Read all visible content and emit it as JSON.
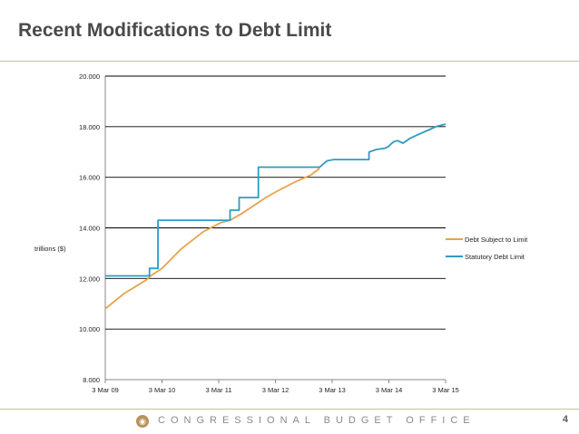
{
  "slide": {
    "title": "Recent Modifications to Debt Limit",
    "footer_org": "CONGRESSIONAL BUDGET OFFICE",
    "page_number": "4",
    "logo_icon": "cbo-seal-icon",
    "accent_color": "#c9c19a"
  },
  "chart_data": {
    "type": "line",
    "title": "",
    "xlabel": "",
    "ylabel": "trillions ($)",
    "xlim": [
      2009.17,
      2015.17
    ],
    "ylim": [
      8.0,
      20.0
    ],
    "grid": true,
    "legend_position": "right",
    "x_ticks": [
      {
        "label": "3 Mar 09",
        "value": 2009.17
      },
      {
        "label": "3 Mar 10",
        "value": 2010.17
      },
      {
        "label": "3 Mar 11",
        "value": 2011.17
      },
      {
        "label": "3 Mar 12",
        "value": 2012.17
      },
      {
        "label": "3 Mar 13",
        "value": 2013.17
      },
      {
        "label": "3 Mar 14",
        "value": 2014.17
      },
      {
        "label": "3 Mar 15",
        "value": 2015.17
      }
    ],
    "y_ticks": [
      {
        "label": "8.000",
        "value": 8
      },
      {
        "label": "10.000",
        "value": 10
      },
      {
        "label": "12.000",
        "value": 12
      },
      {
        "label": "14.000",
        "value": 14
      },
      {
        "label": "16.000",
        "value": 16
      },
      {
        "label": "18.000",
        "value": 18
      },
      {
        "label": "20.000",
        "value": 20
      }
    ],
    "series": [
      {
        "name": "Debt Subject to Limit",
        "color": "#e8a24c",
        "x": [
          2009.17,
          2009.5,
          2009.9,
          2010.0,
          2010.17,
          2010.5,
          2010.9,
          2011.2,
          2011.37,
          2011.6,
          2011.9,
          2012.0,
          2012.2,
          2012.5,
          2012.8,
          2012.95
        ],
        "y": [
          10.8,
          11.4,
          11.95,
          12.15,
          12.4,
          13.15,
          13.85,
          14.2,
          14.3,
          14.6,
          15.05,
          15.2,
          15.45,
          15.8,
          16.1,
          16.35
        ]
      },
      {
        "name": "Statutory Debt Limit",
        "color": "#2e9bc3",
        "x": [
          2009.17,
          2009.95,
          2009.95,
          2010.1,
          2010.1,
          2011.37,
          2011.37,
          2011.53,
          2011.53,
          2011.87,
          2011.87,
          2012.95,
          2013.0,
          2013.08,
          2013.2,
          2013.3,
          2013.42,
          2013.82,
          2013.82,
          2013.95,
          2014.1,
          2014.15,
          2014.25,
          2014.32,
          2014.42,
          2014.55,
          2014.7,
          2014.85,
          2015.0,
          2015.17
        ],
        "y": [
          12.1,
          12.1,
          12.4,
          12.4,
          14.3,
          14.3,
          14.7,
          14.7,
          15.2,
          15.2,
          16.4,
          16.4,
          16.5,
          16.65,
          16.7,
          16.7,
          16.7,
          16.7,
          17.0,
          17.1,
          17.15,
          17.2,
          17.4,
          17.45,
          17.35,
          17.55,
          17.7,
          17.85,
          18.0,
          18.1
        ]
      }
    ]
  }
}
